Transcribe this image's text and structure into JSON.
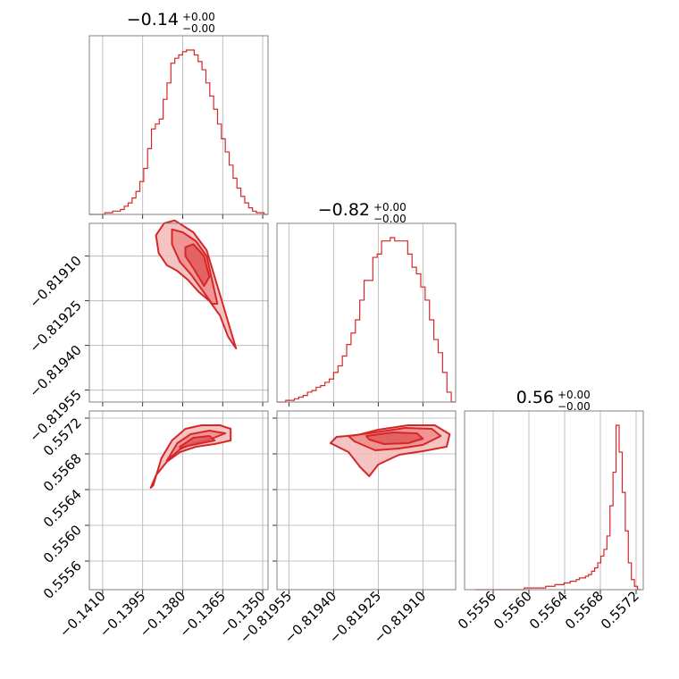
{
  "colors": {
    "accent": "#d62728",
    "fill": "#f5b8b8",
    "grid": "#b0b0b0",
    "frame": "#808080"
  },
  "titles": [
    {
      "main": "−0.14",
      "plus": "+0.00",
      "minus": "−0.00"
    },
    {
      "main": "−0.82",
      "plus": "+0.00",
      "minus": "−0.00"
    },
    {
      "main": "0.56",
      "plus": "+0.00",
      "minus": "−0.00"
    }
  ],
  "chart_data": {
    "type": "corner",
    "parameters": [
      {
        "range": [
          -0.1415,
          -0.1348
        ],
        "ticks": [
          -0.141,
          -0.1395,
          -0.138,
          -0.1365,
          -0.135
        ],
        "tick_labels": [
          "−0.1410",
          "−0.1395",
          "−0.1380",
          "−0.1365",
          "−0.1350"
        ]
      },
      {
        "range": [
          -0.81959,
          -0.81899
        ],
        "ticks": [
          -0.81955,
          -0.8194,
          -0.81925,
          -0.8191
        ],
        "tick_labels": [
          "−0.81955",
          "−0.81940",
          "−0.81925",
          "−0.81910"
        ]
      },
      {
        "range": [
          0.55528,
          0.55728
        ],
        "ticks": [
          0.5556,
          0.556,
          0.5564,
          0.5568,
          0.5572
        ],
        "tick_labels": [
          "0.5556",
          "0.5560",
          "0.5564",
          "0.5568",
          "0.5572"
        ]
      }
    ],
    "histograms": [
      {
        "param": 0,
        "bin_edges": [
          -0.1415,
          -0.1348
        ],
        "counts": [
          0,
          0,
          0,
          0,
          1,
          1,
          2,
          2,
          3,
          5,
          7,
          10,
          14,
          20,
          28,
          40,
          52,
          55,
          58,
          70,
          80,
          92,
          95,
          97,
          99,
          100,
          100,
          97,
          93,
          88,
          80,
          72,
          64,
          55,
          46,
          38,
          30,
          22,
          16,
          11,
          7,
          4,
          2,
          1,
          1,
          0
        ]
      },
      {
        "param": 1,
        "bin_edges": [
          -0.81959,
          -0.81899
        ],
        "counts": [
          0,
          0,
          1,
          1,
          2,
          3,
          4,
          6,
          7,
          9,
          10,
          12,
          14,
          18,
          22,
          28,
          35,
          42,
          50,
          62,
          74,
          74,
          88,
          90,
          98,
          98,
          100,
          98,
          98,
          98,
          90,
          82,
          78,
          70,
          62,
          50,
          38,
          30,
          18,
          6,
          0
        ]
      },
      {
        "param": 2,
        "bin_edges": [
          0.5554,
          0.55725
        ],
        "counts": [
          0,
          0,
          0,
          0,
          0,
          0,
          0,
          0,
          0,
          0,
          0,
          0,
          0,
          0,
          0,
          0,
          1,
          1,
          1,
          1,
          1,
          1,
          1,
          2,
          2,
          2,
          3,
          3,
          3,
          4,
          4,
          5,
          5,
          6,
          7,
          7,
          8,
          9,
          11,
          13,
          16,
          20,
          24,
          32,
          50,
          70,
          98,
          82,
          58,
          35,
          16,
          6,
          2,
          0
        ]
      }
    ],
    "contours_2d": [
      {
        "x_param": 0,
        "y_param": 1,
        "levels": [
          {
            "x": [
              -0.1387,
              -0.1383,
              -0.1376,
              -0.1371,
              -0.1368,
              -0.1365,
              -0.1362,
              -0.136,
              -0.1363,
              -0.1366,
              -0.137,
              -0.1374,
              -0.1378,
              -0.1382,
              -0.1386,
              -0.1389,
              -0.139
            ],
            "y": [
              -0.81899,
              -0.81898,
              -0.81902,
              -0.81908,
              -0.81917,
              -0.81926,
              -0.81935,
              -0.81941,
              -0.81937,
              -0.8193,
              -0.81925,
              -0.81922,
              -0.81918,
              -0.81915,
              -0.81913,
              -0.81909,
              -0.81903
            ]
          },
          {
            "x": [
              -0.1384,
              -0.138,
              -0.1375,
              -0.1371,
              -0.1369,
              -0.1367,
              -0.1369,
              -0.1373,
              -0.1377,
              -0.1381,
              -0.1384
            ],
            "y": [
              -0.81901,
              -0.81902,
              -0.81905,
              -0.8191,
              -0.81918,
              -0.81926,
              -0.81926,
              -0.81921,
              -0.81916,
              -0.81912,
              -0.81906
            ]
          },
          {
            "x": [
              -0.1379,
              -0.1376,
              -0.1372,
              -0.137,
              -0.1372,
              -0.1376,
              -0.1379
            ],
            "y": [
              -0.81907,
              -0.81906,
              -0.8191,
              -0.81917,
              -0.8192,
              -0.81914,
              -0.8191
            ]
          }
        ]
      },
      {
        "x_param": 0,
        "y_param": 2,
        "levels": [
          {
            "x": [
              -0.1391,
              -0.1388,
              -0.1384,
              -0.1379,
              -0.1373,
              -0.1366,
              -0.1362,
              -0.1362,
              -0.1368,
              -0.1375,
              -0.1381,
              -0.1386,
              -0.139,
              -0.1392
            ],
            "y": [
              0.55645,
              0.55675,
              0.55695,
              0.55708,
              0.55712,
              0.55712,
              0.55708,
              0.55695,
              0.55691,
              0.55688,
              0.55682,
              0.55671,
              0.55656,
              0.55642
            ]
          },
          {
            "x": [
              -0.1386,
              -0.1382,
              -0.1377,
              -0.137,
              -0.1364,
              -0.137,
              -0.1376,
              -0.1381,
              -0.1385
            ],
            "y": [
              0.55672,
              0.55692,
              0.55702,
              0.55706,
              0.55703,
              0.55696,
              0.55692,
              0.55685,
              0.55675
            ]
          },
          {
            "x": [
              -0.1381,
              -0.1376,
              -0.137,
              -0.1368,
              -0.1373,
              -0.1378,
              -0.1381
            ],
            "y": [
              0.55688,
              0.55698,
              0.557,
              0.55695,
              0.55692,
              0.55689,
              0.55686
            ]
          }
        ]
      },
      {
        "x_param": 1,
        "y_param": 2,
        "levels": [
          {
            "x": [
              -0.81939,
              -0.81932,
              -0.81925,
              -0.81915,
              -0.81906,
              -0.81901,
              -0.81902,
              -0.8191,
              -0.81918,
              -0.81925,
              -0.81928,
              -0.81931,
              -0.81935,
              -0.81941
            ],
            "y": [
              0.55699,
              0.55701,
              0.55707,
              0.55712,
              0.55712,
              0.55702,
              0.55688,
              0.55683,
              0.55679,
              0.55668,
              0.55655,
              0.55665,
              0.55682,
              0.55692
            ]
          },
          {
            "x": [
              -0.81935,
              -0.81926,
              -0.81916,
              -0.81907,
              -0.81904,
              -0.8191,
              -0.81918,
              -0.81926,
              -0.81933
            ],
            "y": [
              0.557,
              0.55704,
              0.55709,
              0.55708,
              0.557,
              0.5569,
              0.55686,
              0.55684,
              0.55694
            ]
          },
          {
            "x": [
              -0.81929,
              -0.8192,
              -0.81912,
              -0.8191,
              -0.81915,
              -0.81923,
              -0.81928
            ],
            "y": [
              0.557,
              0.55704,
              0.55703,
              0.55697,
              0.55692,
              0.55691,
              0.55696
            ]
          }
        ]
      }
    ],
    "xlabel": "",
    "ylabel": "",
    "grid": true
  }
}
